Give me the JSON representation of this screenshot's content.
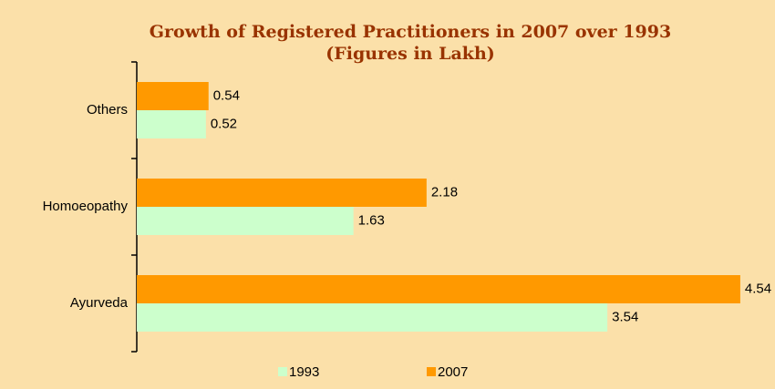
{
  "chart_data": {
    "type": "bar",
    "orientation": "horizontal",
    "title": "Growth of Registered Practitioners in 2007 over 1993",
    "subtitle": "(Figures in Lakh)",
    "categories": [
      "Ayurveda",
      "Homoeopathy",
      "Others"
    ],
    "series": [
      {
        "name": "1993",
        "color": "#ccffcc",
        "values": [
          3.54,
          1.63,
          0.52
        ]
      },
      {
        "name": "2007",
        "color": "#ff9900",
        "values": [
          4.54,
          2.18,
          0.54
        ]
      }
    ],
    "xlim": [
      0,
      5
    ],
    "legend": "bottom"
  }
}
